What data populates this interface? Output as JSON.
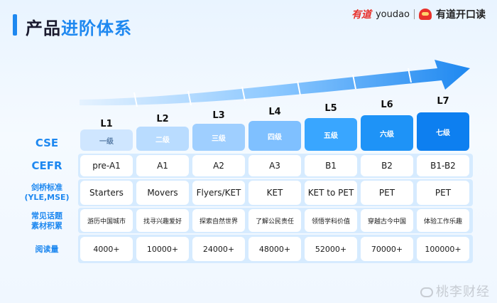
{
  "header": {
    "title_a": "产品",
    "title_b": "进阶体系",
    "brand_youdao_cn": "有道",
    "brand_youdao_en": "youdao",
    "brand_product": "有道开口读"
  },
  "row_labels": {
    "cse": "CSE",
    "cefr": "CEFR",
    "cambridge_line1": "剑桥标准",
    "cambridge_line2": "(YLE,MSE)",
    "topics_line1": "常见话题",
    "topics_line2": "素材积累",
    "reading": "阅读量"
  },
  "levels": [
    {
      "level": "L1",
      "cse": "一级",
      "cefr": "pre-A1",
      "cambridge": "Starters",
      "topic": "游历中国城市",
      "reading": "4000+"
    },
    {
      "level": "L2",
      "cse": "二级",
      "cefr": "A1",
      "cambridge": "Movers",
      "topic": "找寻兴趣爱好",
      "reading": "10000+"
    },
    {
      "level": "L3",
      "cse": "三级",
      "cefr": "A2",
      "cambridge": "Flyers/KET",
      "topic": "探索自然世界",
      "reading": "24000+"
    },
    {
      "level": "L4",
      "cse": "四级",
      "cefr": "A3",
      "cambridge": "KET",
      "topic": "了解公民责任",
      "reading": "48000+"
    },
    {
      "level": "L5",
      "cse": "五级",
      "cefr": "B1",
      "cambridge": "KET to PET",
      "topic": "领悟学科价值",
      "reading": "52000+"
    },
    {
      "level": "L6",
      "cse": "六级",
      "cefr": "B2",
      "cambridge": "PET",
      "topic": "穿越古今中国",
      "reading": "70000+"
    },
    {
      "level": "L7",
      "cse": "七级",
      "cefr": "B1-B2",
      "cambridge": "PET",
      "topic": "体验工作乐趣",
      "reading": "100000+"
    }
  ],
  "colors": {
    "accent": "#1e88f0",
    "cse_levels": [
      "#cfe6ff",
      "#b9dcff",
      "#9fcfff",
      "#7fc0ff",
      "#39a6ff",
      "#1e93f7",
      "#0d7ff0"
    ],
    "cse_text": [
      "#5a7ea8",
      "#ffffff",
      "#ffffff",
      "#ffffff",
      "#ffffff",
      "#ffffff",
      "#ffffff"
    ]
  },
  "watermark": "桃李财经"
}
